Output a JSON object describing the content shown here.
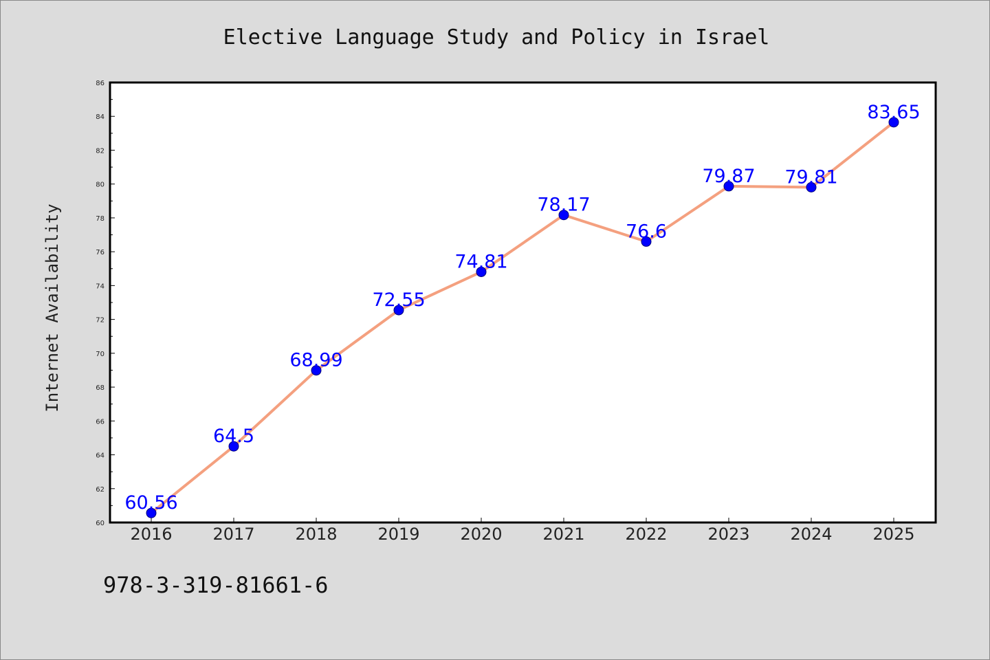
{
  "colors": {
    "background": "#dcdcdc",
    "plot_background": "#ffffff",
    "line": "#f4a07f",
    "marker": "#0000ff",
    "data_label": "#0000ff",
    "axis": "#000000"
  },
  "footer": {
    "isbn": "978-3-319-81661-6"
  },
  "chart_data": {
    "type": "line",
    "title": "Elective Language Study and Policy in Israel",
    "xlabel": "",
    "ylabel": "Internet Availability",
    "categories": [
      "2016",
      "2017",
      "2018",
      "2019",
      "2020",
      "2021",
      "2022",
      "2023",
      "2024",
      "2025"
    ],
    "series": [
      {
        "values": [
          60.56,
          64.5,
          68.99,
          72.55,
          74.81,
          78.17,
          76.6,
          79.87,
          79.81,
          83.65
        ],
        "labels": [
          "60.56",
          "64.5",
          "68.99",
          "72.55",
          "74.81",
          "78.17",
          "76.6",
          "79.87",
          "79.81",
          "83.65"
        ],
        "marker": "circle"
      }
    ],
    "ylim": [
      60,
      86
    ],
    "yticks": [
      60,
      62,
      64,
      66,
      68,
      70,
      72,
      74,
      76,
      78,
      80,
      82,
      84,
      86
    ],
    "grid": false,
    "legend": "none"
  }
}
